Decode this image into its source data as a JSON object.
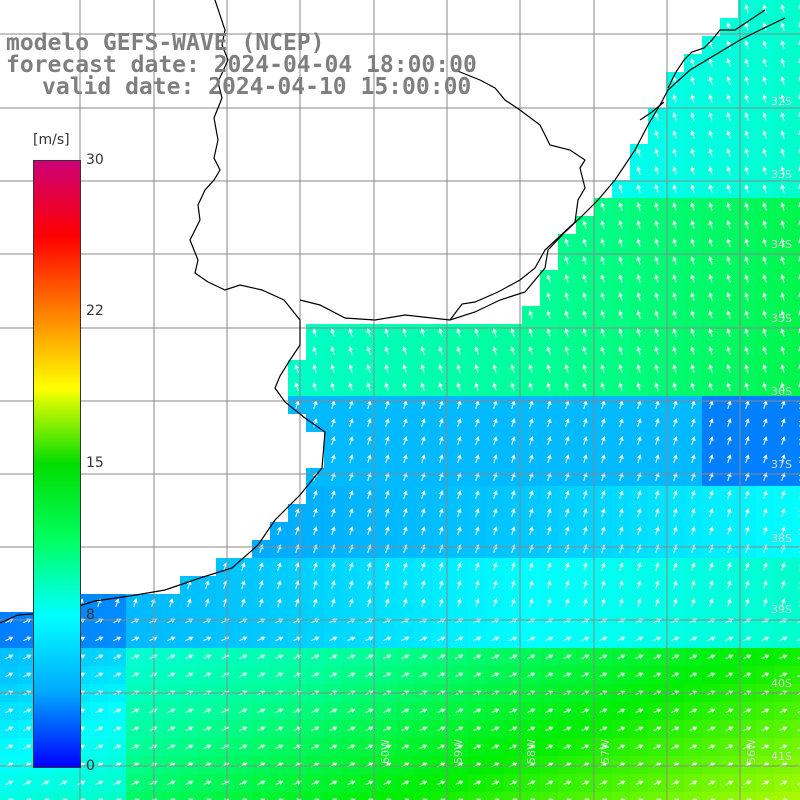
{
  "title": {
    "line1": "modelo GEFS-WAVE (NCEP)",
    "line2": "forecast date: 2024-04-04 18:00:00",
    "line3": "valid date: 2024-04-10 15:00:00"
  },
  "legend": {
    "unit": "[m/s]",
    "ticks": [
      "30",
      "22",
      "15",
      "8",
      "0"
    ],
    "range": [
      0,
      30
    ],
    "colors": [
      "#0000ff",
      "#00aaff",
      "#00ffff",
      "#00ff60",
      "#00dd00",
      "#ffff00",
      "#ff8000",
      "#ff0000",
      "#cc0077"
    ]
  },
  "lat_labels": [
    "32S",
    "33S",
    "34S",
    "35S",
    "36S",
    "37S",
    "38S",
    "39S",
    "40S",
    "41S"
  ],
  "lon_labels": [
    "60W",
    "59W",
    "58W",
    "57W",
    "56W"
  ],
  "colors": {
    "land": "#ffffff",
    "grid": "#888888",
    "coast": "#000000",
    "title": "#7f7f7f"
  }
}
